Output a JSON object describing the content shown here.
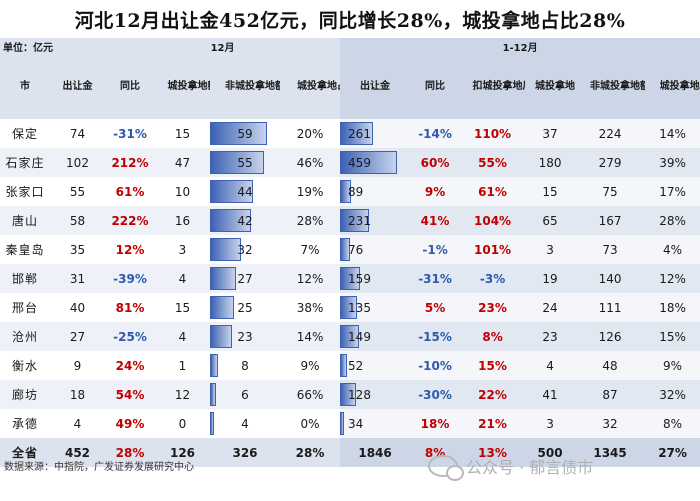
{
  "title": "河北12月出让金452亿元，同比增长28%，城投拿地占比28%",
  "unit_label": "单位：亿元",
  "group_left": "12月",
  "group_right": "1-12月",
  "headers": {
    "city": "市",
    "m_revenue": "出让金",
    "m_yoy": "同比",
    "m_ct": "城投拿地额",
    "m_nonct": "非城投拿地额",
    "m_share": "城投拿地占比",
    "y_revenue": "出让金",
    "y_yoy": "同比",
    "y_excl": "扣城投拿地后出让金同比",
    "y_ct": "城投拿地额",
    "y_nonct": "非城投拿地额",
    "y_share": "城投拿地占比"
  },
  "rows": [
    {
      "city": "保定",
      "m_rev": "74",
      "m_yoy": "-31%",
      "m_ct": "15",
      "m_nonct": "59",
      "m_share": "20%",
      "y_rev": "261",
      "y_yoy": "-14%",
      "y_excl": "110%",
      "y_ct": "37",
      "y_nonct": "224",
      "y_share": "14%"
    },
    {
      "city": "石家庄",
      "m_rev": "102",
      "m_yoy": "212%",
      "m_ct": "47",
      "m_nonct": "55",
      "m_share": "46%",
      "y_rev": "459",
      "y_yoy": "60%",
      "y_excl": "55%",
      "y_ct": "180",
      "y_nonct": "279",
      "y_share": "39%"
    },
    {
      "city": "张家口",
      "m_rev": "55",
      "m_yoy": "61%",
      "m_ct": "10",
      "m_nonct": "44",
      "m_share": "19%",
      "y_rev": "89",
      "y_yoy": "9%",
      "y_excl": "61%",
      "y_ct": "15",
      "y_nonct": "75",
      "y_share": "17%"
    },
    {
      "city": "唐山",
      "m_rev": "58",
      "m_yoy": "222%",
      "m_ct": "16",
      "m_nonct": "42",
      "m_share": "28%",
      "y_rev": "231",
      "y_yoy": "41%",
      "y_excl": "104%",
      "y_ct": "65",
      "y_nonct": "167",
      "y_share": "28%"
    },
    {
      "city": "秦皇岛",
      "m_rev": "35",
      "m_yoy": "12%",
      "m_ct": "3",
      "m_nonct": "32",
      "m_share": "7%",
      "y_rev": "76",
      "y_yoy": "-1%",
      "y_excl": "101%",
      "y_ct": "3",
      "y_nonct": "73",
      "y_share": "4%"
    },
    {
      "city": "邯郸",
      "m_rev": "31",
      "m_yoy": "-39%",
      "m_ct": "4",
      "m_nonct": "27",
      "m_share": "12%",
      "y_rev": "159",
      "y_yoy": "-31%",
      "y_excl": "-3%",
      "y_ct": "19",
      "y_nonct": "140",
      "y_share": "12%"
    },
    {
      "city": "邢台",
      "m_rev": "40",
      "m_yoy": "81%",
      "m_ct": "15",
      "m_nonct": "25",
      "m_share": "38%",
      "y_rev": "135",
      "y_yoy": "5%",
      "y_excl": "23%",
      "y_ct": "24",
      "y_nonct": "111",
      "y_share": "18%"
    },
    {
      "city": "沧州",
      "m_rev": "27",
      "m_yoy": "-25%",
      "m_ct": "4",
      "m_nonct": "23",
      "m_share": "14%",
      "y_rev": "149",
      "y_yoy": "-15%",
      "y_excl": "8%",
      "y_ct": "23",
      "y_nonct": "126",
      "y_share": "15%"
    },
    {
      "city": "衡水",
      "m_rev": "9",
      "m_yoy": "24%",
      "m_ct": "1",
      "m_nonct": "8",
      "m_share": "9%",
      "y_rev": "52",
      "y_yoy": "-10%",
      "y_excl": "15%",
      "y_ct": "4",
      "y_nonct": "48",
      "y_share": "9%"
    },
    {
      "city": "廊坊",
      "m_rev": "18",
      "m_yoy": "54%",
      "m_ct": "12",
      "m_nonct": "6",
      "m_share": "66%",
      "y_rev": "128",
      "y_yoy": "-30%",
      "y_excl": "22%",
      "y_ct": "41",
      "y_nonct": "87",
      "y_share": "32%"
    },
    {
      "city": "承德",
      "m_rev": "4",
      "m_yoy": "49%",
      "m_ct": "0",
      "m_nonct": "4",
      "m_share": "0%",
      "y_rev": "34",
      "y_yoy": "18%",
      "y_excl": "21%",
      "y_ct": "3",
      "y_nonct": "32",
      "y_share": "8%"
    }
  ],
  "total": {
    "city": "全省",
    "m_rev": "452",
    "m_yoy": "28%",
    "m_ct": "126",
    "m_nonct": "326",
    "m_share": "28%",
    "y_rev": "1846",
    "y_yoy": "8%",
    "y_excl": "13%",
    "y_ct": "500",
    "y_nonct": "1345",
    "y_share": "27%"
  },
  "footer": "数据来源：中指院，广发证券发展研究中心",
  "watermark": "公众号 · 郁言债市",
  "watermark_icon": "wechat-icon",
  "colors": {
    "negative": "#2e5aac",
    "positive": "#c00000",
    "bar": "#3d62b3"
  }
}
